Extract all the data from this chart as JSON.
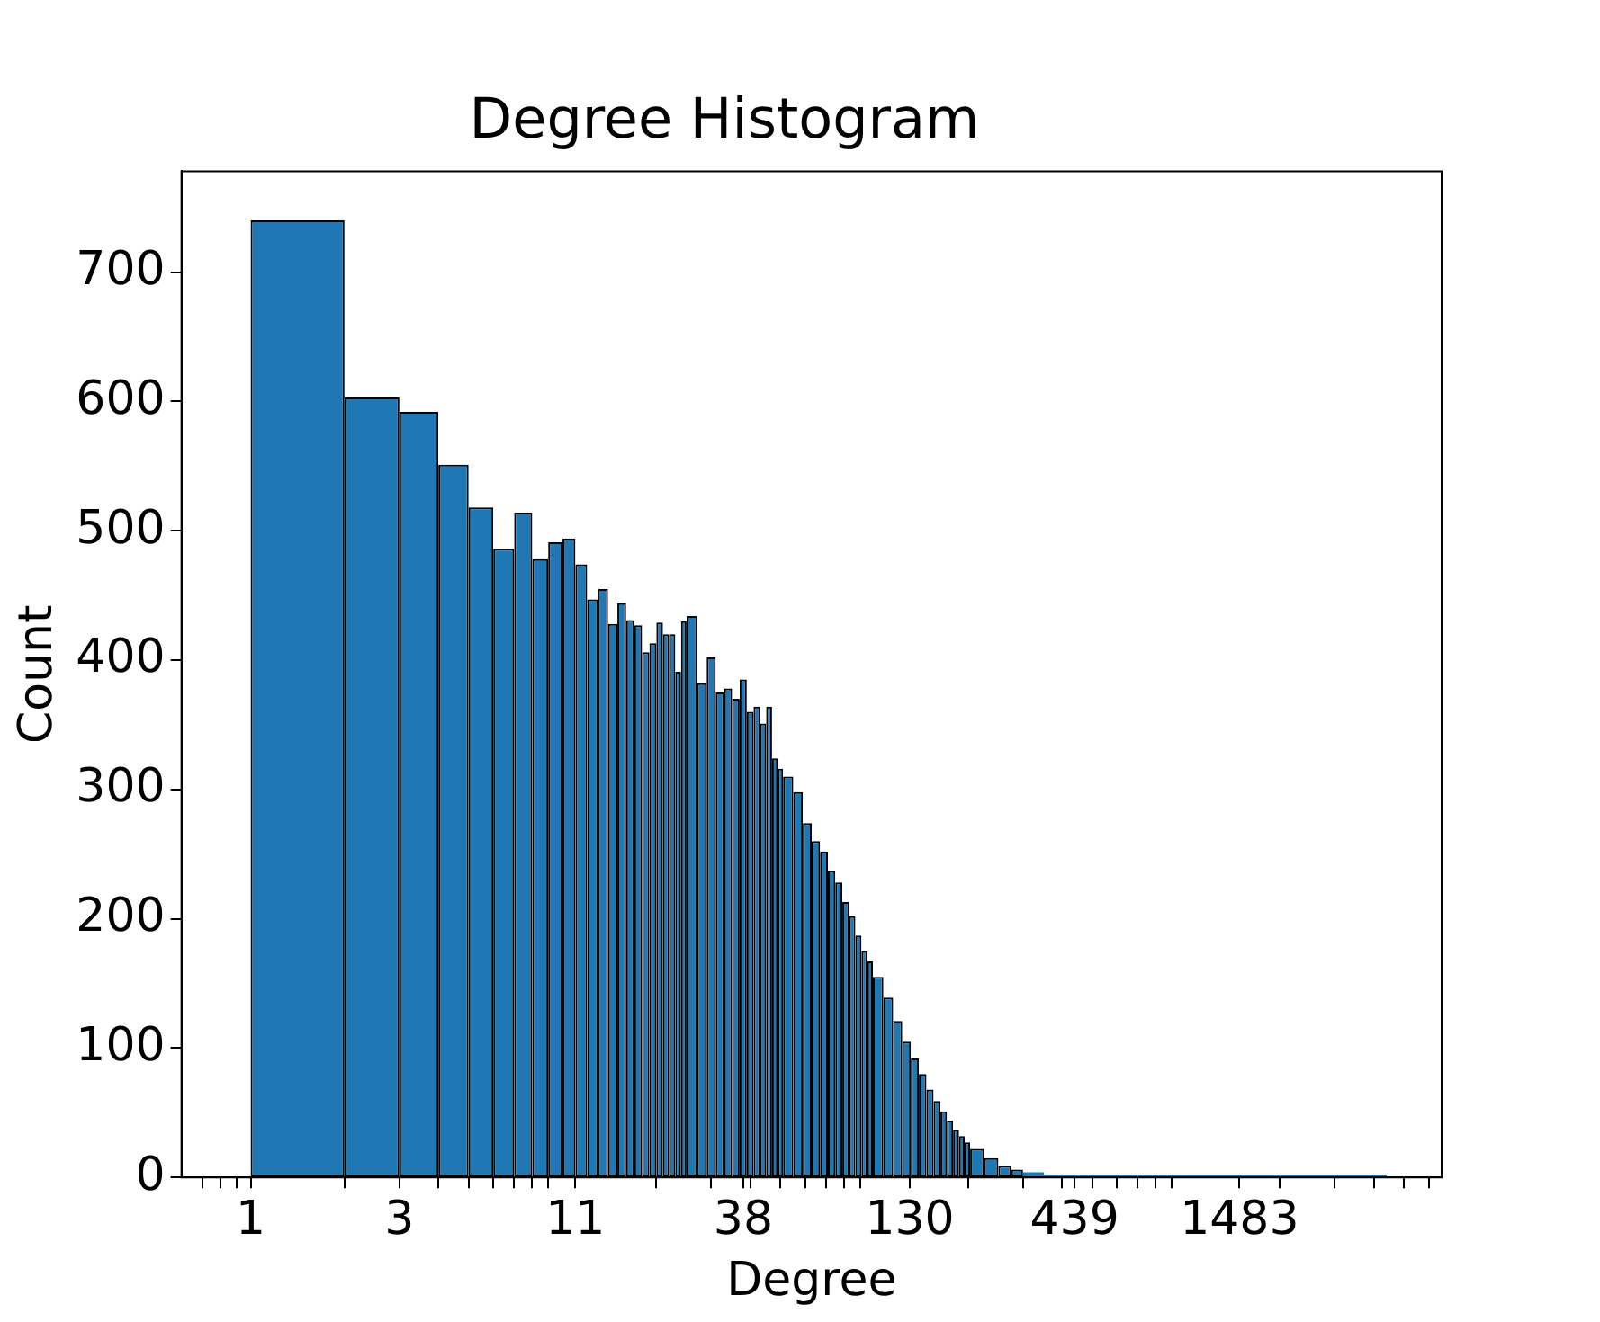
{
  "chart_data": {
    "type": "histogram",
    "title": "Degree Histogram",
    "xlabel": "Degree",
    "ylabel": "Count",
    "color": "#1f77b4",
    "log": "x",
    "bins": [
      1,
      2,
      3,
      4,
      5,
      6,
      7,
      8,
      9,
      10,
      11,
      12,
      13,
      14,
      15,
      16,
      17,
      18,
      19,
      20,
      21,
      22,
      23,
      24,
      25,
      27,
      29,
      31,
      33,
      35,
      37,
      39,
      41,
      43,
      45,
      47,
      49,
      51,
      55,
      59,
      63,
      67,
      71,
      75,
      79,
      83,
      87,
      91,
      95,
      99,
      107,
      115,
      123,
      131,
      139,
      147,
      155,
      163,
      171,
      179,
      187,
      195,
      203,
      225,
      250,
      275,
      300,
      350,
      400,
      450,
      500,
      700,
      1000,
      2000,
      4400
    ],
    "values": [
      740,
      603,
      592,
      551,
      518,
      486,
      514,
      478,
      491,
      494,
      474,
      447,
      455,
      428,
      444,
      431,
      427,
      406,
      413,
      429,
      420,
      420,
      391,
      430,
      434,
      382,
      402,
      375,
      378,
      370,
      385,
      360,
      364,
      351,
      364,
      324,
      316,
      310,
      298,
      274,
      260,
      252,
      237,
      228,
      213,
      202,
      187,
      175,
      167,
      155,
      139,
      121,
      105,
      92,
      80,
      68,
      59,
      51,
      44,
      37,
      32,
      27,
      22,
      15,
      9,
      6,
      4,
      2,
      2,
      2,
      2,
      2,
      2,
      2
    ],
    "xlim": [
      0.6,
      6600
    ],
    "xticks": [
      {
        "value": 0.7,
        "label": null
      },
      {
        "value": 0.8,
        "label": null
      },
      {
        "value": 0.9,
        "label": null
      },
      1,
      {
        "value": 2,
        "label": null
      },
      3,
      {
        "value": 4,
        "label": null
      },
      {
        "value": 5,
        "label": null
      },
      {
        "value": 6,
        "label": null
      },
      {
        "value": 7,
        "label": null
      },
      {
        "value": 8,
        "label": null
      },
      {
        "value": 9,
        "label": null
      },
      11,
      {
        "value": 20,
        "label": null
      },
      {
        "value": 30,
        "label": null
      },
      38,
      {
        "value": 40,
        "label": null
      },
      {
        "value": 50,
        "label": null
      },
      {
        "value": 60,
        "label": null
      },
      {
        "value": 70,
        "label": null
      },
      {
        "value": 80,
        "label": null
      },
      {
        "value": 90,
        "label": null
      },
      130,
      {
        "value": 200,
        "label": null
      },
      {
        "value": 300,
        "label": null
      },
      {
        "value": 400,
        "label": null
      },
      439,
      {
        "value": 500,
        "label": null
      },
      {
        "value": 600,
        "label": null
      },
      {
        "value": 700,
        "label": null
      },
      {
        "value": 800,
        "label": null
      },
      {
        "value": 900,
        "label": null
      },
      1483,
      {
        "value": 2000,
        "label": null
      },
      {
        "value": 3000,
        "label": null
      },
      {
        "value": 4000,
        "label": null
      },
      {
        "value": 5000,
        "label": null
      },
      {
        "value": 6000,
        "label": null
      }
    ],
    "ylim": [
      0,
      778
    ],
    "yticks": [
      0,
      100,
      200,
      300,
      400,
      500,
      600,
      700
    ]
  }
}
